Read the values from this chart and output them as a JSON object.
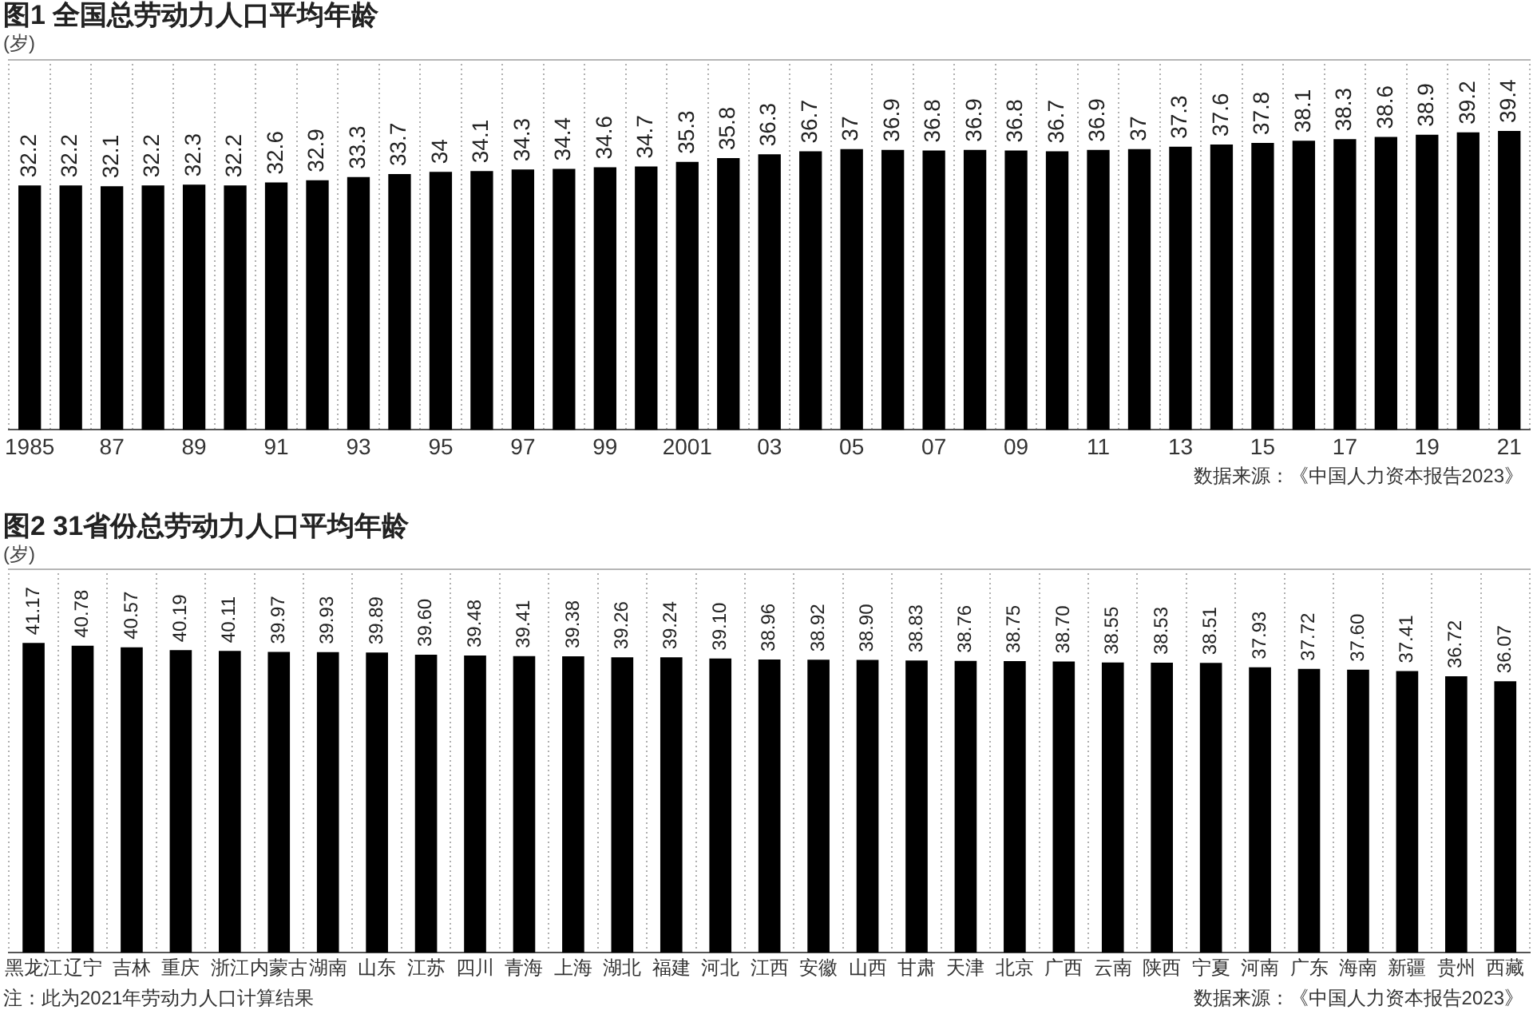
{
  "chart_data": [
    {
      "type": "bar",
      "title": "图1 全国总劳动力人口平均年龄",
      "ylabel": "(岁)",
      "categories": [
        "1985",
        null,
        "87",
        null,
        "89",
        null,
        "91",
        null,
        "93",
        null,
        "95",
        null,
        "97",
        null,
        "99",
        null,
        "2001",
        null,
        "03",
        null,
        "05",
        null,
        "07",
        null,
        "09",
        null,
        "11",
        null,
        "13",
        null,
        "15",
        null,
        "17",
        null,
        "19",
        null,
        "21"
      ],
      "values": [
        32.2,
        32.2,
        32.1,
        32.2,
        32.3,
        32.2,
        32.6,
        32.9,
        33.3,
        33.7,
        34,
        34.1,
        34.3,
        34.4,
        34.6,
        34.7,
        35.3,
        35.8,
        36.3,
        36.7,
        37,
        36.9,
        36.8,
        36.9,
        36.8,
        36.7,
        36.9,
        37,
        37.3,
        37.6,
        37.8,
        38.1,
        38.3,
        38.6,
        38.9,
        39.2,
        39.4
      ],
      "color": "#000000",
      "data_labels": true,
      "grid": "x",
      "tick_labels": "x",
      "annotations": [
        "数据来源：《中国人力资本报告2023》"
      ]
    },
    {
      "type": "bar",
      "title": "图2 31省份总劳动力人口平均年龄",
      "ylabel": "(岁)",
      "categories": [
        "黑龙江",
        "辽宁",
        "吉林",
        "重庆",
        "浙江",
        "内蒙古",
        "湖南",
        "山东",
        "江苏",
        "四川",
        "青海",
        "上海",
        "湖北",
        "福建",
        "河北",
        "江西",
        "安徽",
        "山西",
        "甘肃",
        "天津",
        "北京",
        "广西",
        "云南",
        "陕西",
        "宁夏",
        "河南",
        "广东",
        "海南",
        "新疆",
        "贵州",
        "西藏"
      ],
      "values": [
        41.17,
        40.78,
        40.57,
        40.19,
        40.11,
        39.97,
        39.93,
        39.89,
        39.6,
        39.48,
        39.41,
        39.38,
        39.26,
        39.24,
        39.1,
        38.96,
        38.92,
        38.9,
        38.83,
        38.76,
        38.75,
        38.7,
        38.55,
        38.53,
        38.51,
        37.93,
        37.72,
        37.6,
        37.41,
        36.72,
        36.07
      ],
      "value_labels": [
        "41.17",
        "40.78",
        "40.57",
        "40.19",
        "40.11",
        "39.97",
        "39.93",
        "39.89",
        "39.60",
        "39.48",
        "39.41",
        "39.38",
        "39.26",
        "39.24",
        "39.10",
        "38.96",
        "38.92",
        "38.90",
        "38.83",
        "38.76",
        "38.75",
        "38.70",
        "38.55",
        "38.53",
        "38.51",
        "37.93",
        "37.72",
        "37.60",
        "37.41",
        "36.72",
        "36.07"
      ],
      "color": "#000000",
      "grid": "x",
      "tick_labels": "x",
      "annotations": [
        "注：此为2021年劳动力人口计算结果",
        "数据来源：《中国人力资本报告2023》"
      ]
    }
  ]
}
